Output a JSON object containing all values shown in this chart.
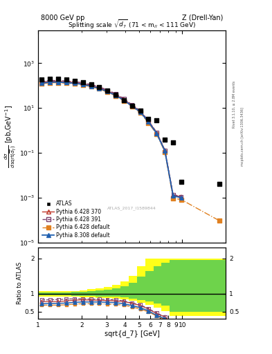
{
  "title_top_left": "8000 GeV pp",
  "title_top_right": "Z (Drell-Yan)",
  "plot_title": "Splitting scale $\\sqrt{\\mathbf{d_7}}$ (71 < m$_{ll}$ < 111 GeV)",
  "xlabel": "sqrt{d_7} [GeV]",
  "ylabel_ratio": "Ratio to ATLAS",
  "watermark": "ATLAS_2017_I1589844",
  "right_label": "Rivet 3.1.10, ≥ 2.8M events",
  "right_label2": "mcplots.cern.ch [arXiv:1306.3436]",
  "xlim": [
    1.0,
    20.0
  ],
  "ylim_main": [
    1e-05,
    30000.0
  ],
  "ylim_ratio": [
    0.3,
    2.3
  ],
  "atlas_x": [
    1.06,
    1.21,
    1.38,
    1.57,
    1.79,
    2.04,
    2.33,
    2.65,
    3.02,
    3.45,
    3.93,
    4.48,
    5.11,
    5.82,
    6.64,
    7.57,
    8.63,
    9.83,
    18.0
  ],
  "atlas_y": [
    185,
    200,
    200,
    185,
    165,
    145,
    115,
    88,
    60,
    40,
    23,
    13,
    7.5,
    3.2,
    2.8,
    0.38,
    0.3,
    0.005,
    0.004
  ],
  "py6_370_x": [
    1.06,
    1.21,
    1.38,
    1.57,
    1.79,
    2.04,
    2.33,
    2.65,
    3.02,
    3.45,
    3.93,
    4.48,
    5.11,
    5.82,
    6.64,
    7.57,
    8.63,
    9.83
  ],
  "py6_370_y": [
    140,
    155,
    155,
    148,
    138,
    124,
    102,
    82,
    58,
    40,
    24,
    13,
    7.2,
    2.6,
    0.8,
    0.13,
    0.0013,
    0.0011
  ],
  "py6_391_x": [
    1.06,
    1.21,
    1.38,
    1.57,
    1.79,
    2.04,
    2.33,
    2.65,
    3.02,
    3.45,
    3.93,
    4.48,
    5.11,
    5.82,
    6.64,
    7.57,
    8.63,
    9.83
  ],
  "py6_391_y": [
    152,
    168,
    168,
    160,
    150,
    135,
    111,
    90,
    63,
    44,
    26,
    14,
    7.6,
    2.7,
    0.82,
    0.13,
    0.0014,
    0.0011
  ],
  "py6_def_x": [
    1.06,
    1.21,
    1.38,
    1.57,
    1.79,
    2.04,
    2.33,
    2.65,
    3.02,
    3.45,
    3.93,
    4.48,
    5.11,
    5.82,
    6.64,
    7.57,
    8.63,
    9.83,
    18.0
  ],
  "py6_def_y": [
    120,
    135,
    135,
    128,
    120,
    108,
    89,
    72,
    51,
    35,
    21,
    11.5,
    6.2,
    2.2,
    0.68,
    0.11,
    0.00095,
    0.00082,
    9.5e-05
  ],
  "py8_def_x": [
    1.06,
    1.21,
    1.38,
    1.57,
    1.79,
    2.04,
    2.33,
    2.65,
    3.02,
    3.45,
    3.93,
    4.48,
    5.11,
    5.82,
    6.64,
    7.57,
    8.63,
    9.83
  ],
  "py8_def_y": [
    128,
    143,
    143,
    136,
    127,
    114,
    94,
    76,
    54,
    37,
    22,
    12.2,
    6.7,
    2.4,
    0.74,
    0.12,
    0.0012,
    0.001
  ],
  "ratio_x": [
    1.06,
    1.21,
    1.38,
    1.57,
    1.79,
    2.04,
    2.33,
    2.65,
    3.02,
    3.45,
    3.93,
    4.48,
    5.11,
    5.82,
    6.64,
    7.57
  ],
  "ratio_py6_370": [
    0.78,
    0.78,
    0.78,
    0.8,
    0.82,
    0.83,
    0.82,
    0.82,
    0.81,
    0.8,
    0.78,
    0.73,
    0.67,
    0.57,
    0.44,
    0.35
  ],
  "ratio_py6_391": [
    0.83,
    0.83,
    0.84,
    0.85,
    0.86,
    0.86,
    0.85,
    0.85,
    0.84,
    0.83,
    0.8,
    0.74,
    0.69,
    0.58,
    0.46,
    0.35
  ],
  "ratio_py6_def": [
    0.68,
    0.68,
    0.68,
    0.69,
    0.71,
    0.72,
    0.72,
    0.72,
    0.71,
    0.7,
    0.68,
    0.63,
    0.57,
    0.49,
    0.37,
    0.27
  ],
  "ratio_py8_def": [
    0.72,
    0.73,
    0.73,
    0.74,
    0.76,
    0.77,
    0.77,
    0.77,
    0.76,
    0.75,
    0.72,
    0.67,
    0.61,
    0.52,
    0.39,
    0.3
  ],
  "band_x_edges": [
    1.0,
    1.14,
    1.3,
    1.48,
    1.69,
    1.93,
    2.2,
    2.51,
    2.86,
    3.26,
    3.72,
    4.24,
    4.84,
    5.52,
    6.3,
    7.18,
    8.19,
    9.34,
    20.0
  ],
  "band_yellow_lo": [
    0.93,
    0.93,
    0.93,
    0.93,
    0.92,
    0.91,
    0.9,
    0.89,
    0.88,
    0.87,
    0.84,
    0.8,
    0.75,
    0.68,
    0.6,
    0.52,
    0.38,
    0.38
  ],
  "band_yellow_hi": [
    1.07,
    1.07,
    1.07,
    1.07,
    1.08,
    1.1,
    1.13,
    1.16,
    1.2,
    1.25,
    1.35,
    1.5,
    1.78,
    2.0,
    2.0,
    2.0,
    2.0,
    2.0
  ],
  "band_green_lo": [
    0.96,
    0.96,
    0.96,
    0.96,
    0.95,
    0.95,
    0.94,
    0.93,
    0.92,
    0.92,
    0.9,
    0.87,
    0.83,
    0.79,
    0.72,
    0.66,
    0.5,
    0.5
  ],
  "band_green_hi": [
    1.04,
    1.04,
    1.04,
    1.04,
    1.05,
    1.06,
    1.08,
    1.1,
    1.12,
    1.15,
    1.22,
    1.32,
    1.48,
    1.65,
    1.78,
    1.88,
    1.95,
    1.95
  ],
  "color_py6_370": "#c0392b",
  "color_py6_391": "#7b3f6e",
  "color_py6_def": "#e08020",
  "color_py8_def": "#2060b0",
  "color_atlas": "#000000"
}
